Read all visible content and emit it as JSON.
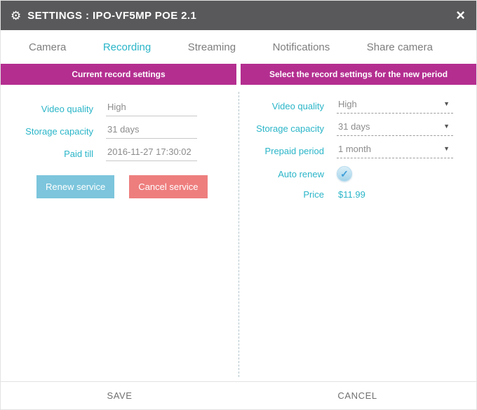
{
  "header": {
    "title": "SETTINGS : IPO-VF5MP POE 2.1"
  },
  "icons": {
    "gear": "⚙",
    "close": "×",
    "check": "✓",
    "dropdown_arrow": "▼"
  },
  "tabs": [
    {
      "label": "Camera",
      "active": false
    },
    {
      "label": "Recording",
      "active": true
    },
    {
      "label": "Streaming",
      "active": false
    },
    {
      "label": "Notifications",
      "active": false
    },
    {
      "label": "Share camera",
      "active": false
    }
  ],
  "left_panel": {
    "title": "Current record settings",
    "fields": [
      {
        "label": "Video quality",
        "value": "High"
      },
      {
        "label": "Storage capacity",
        "value": "31 days"
      },
      {
        "label": "Paid till",
        "value": "2016-11-27 17:30:02"
      }
    ],
    "renew_button": "Renew service",
    "cancel_button": "Cancel service"
  },
  "right_panel": {
    "title": "Select the record settings for the new period",
    "fields": [
      {
        "label": "Video quality",
        "value": "High"
      },
      {
        "label": "Storage capacity",
        "value": "31 days"
      },
      {
        "label": "Prepaid period",
        "value": "1 month"
      }
    ],
    "auto_renew_label": "Auto renew",
    "auto_renew_checked": true,
    "price_label": "Price",
    "price_value": "$11.99"
  },
  "footer": {
    "save_label": "SAVE",
    "cancel_label": "CANCEL"
  },
  "colors": {
    "accent_teal": "#2ab5c8",
    "magenta": "#b42e90",
    "header_gray": "#59595b",
    "renew_button_blue": "#7cc5dc",
    "cancel_button_red": "#ee7e7e"
  }
}
